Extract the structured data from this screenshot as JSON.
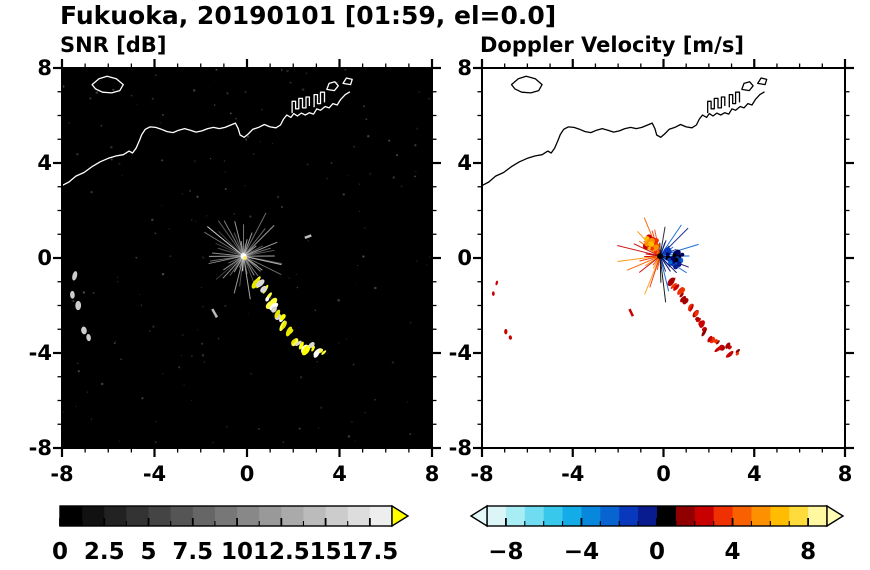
{
  "header": {
    "title": "Fukuoka, 20190101 [01:59, el=0.0]",
    "left_panel_title": "SNR [dB]",
    "right_panel_title": "Doppler Velocity [m/s]"
  },
  "axes": {
    "range": [
      -8,
      8
    ],
    "major_ticks": [
      -8,
      -4,
      0,
      4,
      8
    ],
    "major_tick_labels": [
      "-8",
      "-4",
      "0",
      "4",
      "8"
    ],
    "minor_step": 1
  },
  "map": {
    "coastline_mainland": [
      [
        -8,
        3.05
      ],
      [
        -7.7,
        3.2
      ],
      [
        -7.4,
        3.45
      ],
      [
        -7.05,
        3.6
      ],
      [
        -6.7,
        3.85
      ],
      [
        -6.35,
        4.05
      ],
      [
        -6,
        4.2
      ],
      [
        -5.65,
        4.3
      ],
      [
        -5.35,
        4.35
      ],
      [
        -5.1,
        4.5
      ],
      [
        -4.95,
        4.42
      ],
      [
        -4.8,
        4.62
      ],
      [
        -4.65,
        4.95
      ],
      [
        -4.55,
        5.2
      ],
      [
        -4.4,
        5.42
      ],
      [
        -4.2,
        5.52
      ],
      [
        -3.95,
        5.5
      ],
      [
        -3.7,
        5.42
      ],
      [
        -3.45,
        5.32
      ],
      [
        -3.2,
        5.28
      ],
      [
        -2.95,
        5.38
      ],
      [
        -2.7,
        5.45
      ],
      [
        -2.45,
        5.38
      ],
      [
        -2.2,
        5.3
      ],
      [
        -1.95,
        5.35
      ],
      [
        -1.7,
        5.45
      ],
      [
        -1.45,
        5.5
      ],
      [
        -1.2,
        5.45
      ],
      [
        -0.95,
        5.5
      ],
      [
        -0.7,
        5.6
      ],
      [
        -0.5,
        5.68
      ],
      [
        -0.38,
        5.45
      ],
      [
        -0.3,
        5.18
      ],
      [
        -0.12,
        5.08
      ],
      [
        0.05,
        5.22
      ],
      [
        0.25,
        5.42
      ],
      [
        0.5,
        5.5
      ],
      [
        0.75,
        5.62
      ],
      [
        1,
        5.52
      ],
      [
        1.25,
        5.48
      ],
      [
        1.45,
        5.6
      ],
      [
        1.58,
        5.85
      ],
      [
        1.72,
        6.02
      ],
      [
        1.9,
        5.92
      ],
      [
        2.02,
        6.08
      ],
      [
        2.18,
        5.98
      ],
      [
        2.35,
        6.1
      ],
      [
        2.52,
        6.02
      ],
      [
        2.7,
        6.12
      ],
      [
        2.88,
        6.06
      ],
      [
        3.02,
        6.28
      ],
      [
        3.18,
        6.22
      ],
      [
        3.38,
        6.38
      ],
      [
        3.55,
        6.32
      ],
      [
        3.72,
        6.5
      ],
      [
        3.9,
        6.44
      ],
      [
        4.05,
        6.68
      ],
      [
        4.25,
        6.88
      ],
      [
        4.45,
        7.0
      ]
    ],
    "island": [
      [
        -6.7,
        7.3
      ],
      [
        -6.4,
        7.55
      ],
      [
        -6.05,
        7.65
      ],
      [
        -5.65,
        7.55
      ],
      [
        -5.35,
        7.3
      ],
      [
        -5.5,
        7.05
      ],
      [
        -5.85,
        6.95
      ],
      [
        -6.25,
        6.98
      ],
      [
        -6.55,
        7.12
      ]
    ],
    "harbor_piers": [
      [
        [
          1.95,
          6.1
        ],
        [
          1.95,
          6.6
        ],
        [
          2.1,
          6.6
        ],
        [
          2.1,
          6.28
        ],
        [
          2.24,
          6.28
        ],
        [
          2.24,
          6.72
        ],
        [
          2.4,
          6.72
        ],
        [
          2.4,
          6.32
        ],
        [
          2.55,
          6.32
        ],
        [
          2.55,
          6.78
        ],
        [
          2.7,
          6.78
        ],
        [
          2.7,
          6.4
        ]
      ],
      [
        [
          2.9,
          6.35
        ],
        [
          2.9,
          6.88
        ],
        [
          3.05,
          6.88
        ],
        [
          3.05,
          6.5
        ],
        [
          3.18,
          6.5
        ],
        [
          3.18,
          6.98
        ],
        [
          3.35,
          6.98
        ],
        [
          3.35,
          6.55
        ]
      ]
    ],
    "islets": [
      [
        [
          3.45,
          7.1
        ],
        [
          3.55,
          7.35
        ],
        [
          3.8,
          7.42
        ],
        [
          3.95,
          7.25
        ],
        [
          3.78,
          7.05
        ]
      ],
      [
        [
          4.15,
          7.35
        ],
        [
          4.3,
          7.58
        ],
        [
          4.55,
          7.52
        ],
        [
          4.48,
          7.3
        ]
      ]
    ]
  },
  "chart_data": [
    {
      "type": "heatmap",
      "panel": "snr",
      "title": "SNR [dB]",
      "xlabel": "",
      "ylabel": "",
      "xlim": [
        -8,
        8
      ],
      "ylim": [
        -8,
        8
      ],
      "xticks": [
        -8,
        -4,
        0,
        4,
        8
      ],
      "yticks": [
        -8,
        -4,
        0,
        4,
        8
      ],
      "background": "#000000",
      "coast_color": "#ffffff",
      "colorbar": {
        "orientation": "horizontal",
        "colormap": "grayscale",
        "range": [
          0,
          18.75
        ],
        "colors": [
          "#000000",
          "#111111",
          "#222222",
          "#333333",
          "#444444",
          "#555555",
          "#666666",
          "#777777",
          "#888888",
          "#999999",
          "#aaaaaa",
          "#bbbbbb",
          "#cccccc",
          "#dddddd",
          "#eeeeee"
        ],
        "tick_values": [
          0,
          2.5,
          5,
          7.5,
          10,
          12.5,
          15,
          17.5
        ],
        "tick_labels": [
          "0",
          "2.5",
          "5",
          "7.5",
          "10",
          "12.5",
          "15",
          "17.5"
        ],
        "minor_tick_step": 1.25,
        "over_arrow_color": "#ffff00"
      },
      "features": {
        "radar_center": [
          -0.15,
          0.08
        ],
        "center_dot_colors": [
          "#ffffff",
          "#ffee66"
        ],
        "clutter_spokes": {
          "count": 48,
          "min_len": 0.5,
          "max_len": 2.1,
          "seed": 11,
          "colors": [
            "#c8c8c8",
            "#989898",
            "#e2e2e2",
            "#b0b0b0"
          ]
        },
        "noise_speckle": {
          "count": 170,
          "seed": 5,
          "color": "#9a9a9a"
        },
        "echo_band": [
          [
            0.35,
            -0.95,
            0.2
          ],
          [
            0.55,
            -1.15,
            0.17
          ],
          [
            0.72,
            -1.38,
            0.19
          ],
          [
            0.85,
            -1.62,
            0.15
          ],
          [
            1.0,
            -1.85,
            0.19
          ],
          [
            1.12,
            -2.1,
            0.17
          ],
          [
            1.32,
            -2.35,
            0.19
          ],
          [
            1.5,
            -2.55,
            0.15
          ],
          [
            1.62,
            -2.85,
            0.19
          ],
          [
            1.85,
            -3.1,
            0.17
          ],
          [
            2.05,
            -3.45,
            0.19
          ],
          [
            2.3,
            -3.6,
            0.15
          ],
          [
            2.55,
            -3.85,
            0.21
          ],
          [
            2.85,
            -3.72,
            0.15
          ],
          [
            3.05,
            -4.05,
            0.19
          ],
          [
            3.28,
            -3.95,
            0.13
          ]
        ],
        "echo_band_colors": [
          "#ffff00",
          "#ffff44",
          "#ffffff",
          "#e8e800",
          "#d8d8d8"
        ],
        "band_seed": 31,
        "west_echoes": [
          [
            -7.45,
            -0.75,
            0.2
          ],
          [
            -7.55,
            -1.55,
            0.12
          ],
          [
            -7.3,
            -2.0,
            0.17
          ],
          [
            -7.05,
            -3.05,
            0.14
          ],
          [
            -6.85,
            -3.35,
            0.11
          ]
        ],
        "west_echo_color": "#cccccc",
        "dash_echoes": [
          [
            -1.5,
            -2.15,
            -1.3,
            -2.5
          ],
          [
            2.5,
            0.85,
            2.78,
            0.95
          ]
        ],
        "dash_color": "#bbbbbb"
      }
    },
    {
      "type": "heatmap",
      "panel": "velocity",
      "title": "Doppler Velocity [m/s]",
      "xlabel": "",
      "ylabel": "",
      "xlim": [
        -8,
        8
      ],
      "ylim": [
        -8,
        8
      ],
      "xticks": [
        -8,
        -4,
        0,
        4,
        8
      ],
      "yticks": [
        -8,
        -4,
        0,
        4,
        8
      ],
      "background": "#ffffff",
      "coast_color": "#000000",
      "colorbar": {
        "orientation": "horizontal",
        "colormap": "rainbow-diverging",
        "range": [
          -9,
          9
        ],
        "colors": [
          "#dcf6f8",
          "#a8ecf4",
          "#70dcf2",
          "#38c8ec",
          "#14ace6",
          "#0888dc",
          "#0864d0",
          "#0838bc",
          "#081c90",
          "#000000",
          "#900000",
          "#c80000",
          "#f03000",
          "#f86000",
          "#fc9000",
          "#ffbc00",
          "#ffdc3c",
          "#fff8a0"
        ],
        "tick_values": [
          -8,
          -4,
          0,
          4,
          8
        ],
        "tick_labels": [
          "−8",
          "−4",
          "0",
          "4",
          "8"
        ],
        "minor_tick_step": 1,
        "under_arrow_color": "#e4fafa",
        "over_arrow_color": "#fffcb4"
      },
      "features": {
        "radar_center": [
          -0.15,
          0.08
        ],
        "center_dot_colors": [
          "#000000"
        ],
        "spokes": {
          "count": 44,
          "min_len": 0.5,
          "max_len": 2.0,
          "seed": 11,
          "toward_colors": [
            "#f86000",
            "#f03000",
            "#c80000",
            "#fc9000"
          ],
          "away_colors": [
            "#0838bc",
            "#081c90",
            "#0864d0",
            "#000060"
          ],
          "vertical_color": "#000000"
        },
        "toward_cluster": {
          "center": [
            -0.55,
            0.6
          ],
          "spread": 0.38,
          "count": 30,
          "seed": 21,
          "colors": [
            "#f86000",
            "#f03000",
            "#c80000",
            "#fc9000",
            "#ffbc00"
          ]
        },
        "away_cluster": {
          "center": [
            0.55,
            -0.05
          ],
          "spread": 0.42,
          "count": 36,
          "seed": 22,
          "colors": [
            "#0838bc",
            "#081c90",
            "#0864d0",
            "#000060",
            "#000000"
          ]
        },
        "echo_band": [
          [
            0.35,
            -0.95,
            0.17
          ],
          [
            0.55,
            -1.15,
            0.14
          ],
          [
            0.72,
            -1.38,
            0.16
          ],
          [
            0.85,
            -1.62,
            0.13
          ],
          [
            1.0,
            -1.85,
            0.16
          ],
          [
            1.12,
            -2.1,
            0.14
          ],
          [
            1.32,
            -2.35,
            0.16
          ],
          [
            1.5,
            -2.55,
            0.13
          ],
          [
            1.62,
            -2.85,
            0.16
          ],
          [
            1.85,
            -3.1,
            0.14
          ],
          [
            2.05,
            -3.45,
            0.16
          ],
          [
            2.3,
            -3.6,
            0.13
          ],
          [
            2.55,
            -3.85,
            0.18
          ],
          [
            2.85,
            -3.72,
            0.13
          ],
          [
            3.05,
            -4.05,
            0.16
          ],
          [
            3.28,
            -3.95,
            0.11
          ]
        ],
        "echo_band_colors": [
          "#c80000",
          "#900000",
          "#f03000",
          "#a80000"
        ],
        "band_seed": 33,
        "west_echoes": [
          [
            -7.35,
            -1.05,
            0.1
          ],
          [
            -7.5,
            -1.5,
            0.07
          ],
          [
            -6.95,
            -3.1,
            0.1
          ],
          [
            -6.75,
            -3.35,
            0.08
          ]
        ],
        "west_echo_color": "#c80000",
        "dash_echoes": [
          [
            -1.5,
            -2.15,
            -1.35,
            -2.45
          ]
        ],
        "dash_color": "#c80000"
      }
    }
  ]
}
